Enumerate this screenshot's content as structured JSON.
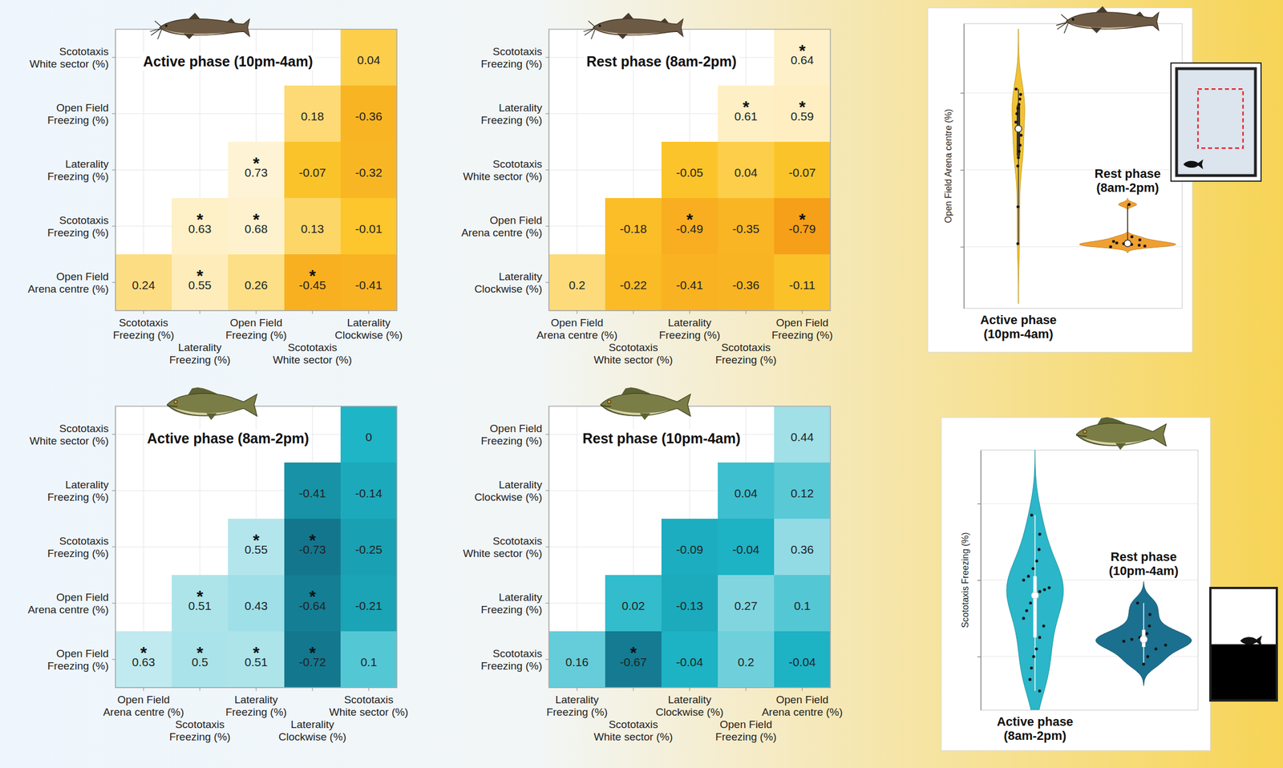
{
  "chart_data": [
    {
      "type": "heatmap",
      "title": "Active phase (10pm-4am)",
      "rows": [
        "Scototaxis White sector (%)",
        "Open Field Freezing (%)",
        "Laterality Freezing (%)",
        "Scototaxis Freezing (%)",
        "Open Field Arena centre (%)"
      ],
      "columns": [
        "Scototaxis Freezing (%)",
        "Laterality Freezing (%)",
        "Open Field Freezing (%)",
        "Scototaxis White sector (%)",
        "Laterality Clockwise (%)"
      ],
      "values": [
        [
          null,
          null,
          null,
          null,
          0.04
        ],
        [
          null,
          null,
          null,
          0.18,
          -0.36
        ],
        [
          null,
          null,
          0.73,
          -0.07,
          -0.32
        ],
        [
          null,
          0.63,
          0.68,
          0.13,
          -0.01
        ],
        [
          0.24,
          0.55,
          0.26,
          -0.45,
          -0.41
        ]
      ],
      "significant": [
        [
          false,
          false,
          false,
          false,
          false
        ],
        [
          false,
          false,
          false,
          false,
          false
        ],
        [
          false,
          false,
          true,
          false,
          false
        ],
        [
          false,
          true,
          true,
          false,
          false
        ],
        [
          false,
          true,
          false,
          true,
          false
        ]
      ],
      "significance_label": "*",
      "color_domain": [
        -1,
        1
      ],
      "color": "orange",
      "data_labels": true,
      "grid": true
    },
    {
      "type": "heatmap",
      "title": "Rest phase (8am-2pm)",
      "rows": [
        "Scototaxis Freezing (%)",
        "Laterality Freezing (%)",
        "Scototaxis White sector (%)",
        "Open Field Arena centre (%)",
        "Laterality Clockwise (%)"
      ],
      "columns": [
        "Open Field Arena centre (%)",
        "Scototaxis White sector (%)",
        "Laterality Freezing (%)",
        "Scototaxis Freezing (%)",
        "Open Field Freezing (%)"
      ],
      "values": [
        [
          null,
          null,
          null,
          null,
          0.64
        ],
        [
          null,
          null,
          null,
          0.61,
          0.59
        ],
        [
          null,
          null,
          -0.05,
          0.04,
          -0.07
        ],
        [
          null,
          -0.18,
          -0.49,
          -0.35,
          -0.79
        ],
        [
          0.2,
          -0.22,
          -0.41,
          -0.36,
          -0.11
        ]
      ],
      "significant": [
        [
          false,
          false,
          false,
          false,
          true
        ],
        [
          false,
          false,
          false,
          true,
          true
        ],
        [
          false,
          false,
          false,
          false,
          false
        ],
        [
          false,
          false,
          true,
          false,
          true
        ],
        [
          false,
          false,
          false,
          false,
          false
        ]
      ],
      "significance_label": "*",
      "color_domain": [
        -1,
        1
      ],
      "color": "orange",
      "data_labels": true,
      "grid": true
    },
    {
      "type": "heatmap",
      "title": "Active phase (8am-2pm)",
      "rows": [
        "Scototaxis White sector (%)",
        "Laterality Freezing (%)",
        "Scototaxis Freezing (%)",
        "Open Field Arena centre (%)",
        "Open Field Freezing (%)"
      ],
      "columns": [
        "Open Field Arena centre (%)",
        "Scototaxis Freezing (%)",
        "Laterality Freezing (%)",
        "Laterality Clockwise (%)",
        "Scototaxis White sector (%)"
      ],
      "values": [
        [
          null,
          null,
          null,
          null,
          0
        ],
        [
          null,
          null,
          null,
          -0.41,
          -0.14
        ],
        [
          null,
          null,
          0.55,
          -0.73,
          -0.25
        ],
        [
          null,
          0.51,
          0.43,
          -0.64,
          -0.21
        ],
        [
          0.63,
          0.5,
          0.51,
          -0.72,
          0.1
        ]
      ],
      "significant": [
        [
          false,
          false,
          false,
          false,
          false
        ],
        [
          false,
          false,
          false,
          false,
          false
        ],
        [
          false,
          false,
          true,
          true,
          false
        ],
        [
          false,
          true,
          false,
          true,
          false
        ],
        [
          true,
          true,
          true,
          true,
          false
        ]
      ],
      "significance_label": "*",
      "color_domain": [
        -1,
        1
      ],
      "color": "teal",
      "data_labels": true,
      "grid": true
    },
    {
      "type": "heatmap",
      "title": "Rest phase (10pm-4am)",
      "rows": [
        "Open Field Freezing (%)",
        "Laterality Clockwise (%)",
        "Scototaxis White sector (%)",
        "Laterality Freezing (%)",
        "Scototaxis Freezing (%)"
      ],
      "columns": [
        "Laterality Freezing (%)",
        "Scototaxis White sector (%)",
        "Laterality Clockwise (%)",
        "Open Field Freezing (%)",
        "Open Field Arena centre (%)"
      ],
      "values": [
        [
          null,
          null,
          null,
          null,
          0.44
        ],
        [
          null,
          null,
          null,
          0.04,
          0.12
        ],
        [
          null,
          null,
          -0.09,
          -0.04,
          0.36
        ],
        [
          null,
          0.02,
          -0.13,
          0.27,
          0.1
        ],
        [
          0.16,
          -0.67,
          -0.04,
          0.2,
          -0.04
        ]
      ],
      "significant": [
        [
          false,
          false,
          false,
          false,
          false
        ],
        [
          false,
          false,
          false,
          false,
          false
        ],
        [
          false,
          false,
          false,
          false,
          false
        ],
        [
          false,
          false,
          false,
          false,
          false
        ],
        [
          false,
          true,
          false,
          false,
          false
        ]
      ],
      "significance_label": "*",
      "color_domain": [
        -1,
        1
      ],
      "color": "teal",
      "data_labels": true,
      "grid": true
    },
    {
      "type": "violin",
      "y_label": "Open Field Arena centre (%)",
      "categories": [
        "Active phase (10pm-4am)",
        "Rest phase (8am-2pm)"
      ],
      "values": [
        [
          20.5,
          19.8,
          19.2,
          18.5,
          18,
          17.3,
          16.2,
          14.5,
          13.2,
          12.4,
          11.6,
          10.5,
          5.2,
          0.4
        ],
        [
          0,
          0.1,
          0.2,
          0.3,
          0.4,
          0.5,
          0.7,
          0.9,
          1.3,
          5.5
        ]
      ],
      "colors": [
        "#f2c232",
        "#f0a030"
      ],
      "ylim": [
        -8,
        29
      ],
      "yticks": [
        0,
        10,
        20
      ],
      "grid": true,
      "tick_labels": "x"
    },
    {
      "type": "violin",
      "y_label": "Scototaxis Freezing (%)",
      "categories": [
        "Active phase (8am-2pm)",
        "Rest phase (10pm-4am)"
      ],
      "values": [
        [
          57,
          52,
          48,
          45,
          43,
          41,
          40,
          38,
          37.5,
          37,
          36,
          34,
          32,
          30,
          28,
          25,
          22,
          20,
          17,
          14,
          11
        ],
        [
          34,
          31,
          28,
          26,
          25,
          24.5,
          24,
          23,
          22,
          20,
          18
        ]
      ],
      "colors": [
        "#2bb6c9",
        "#1b6f8f"
      ],
      "ylim": [
        6,
        74
      ],
      "yticks": [
        20,
        40,
        60
      ],
      "grid": true,
      "tick_labels": "x"
    }
  ]
}
